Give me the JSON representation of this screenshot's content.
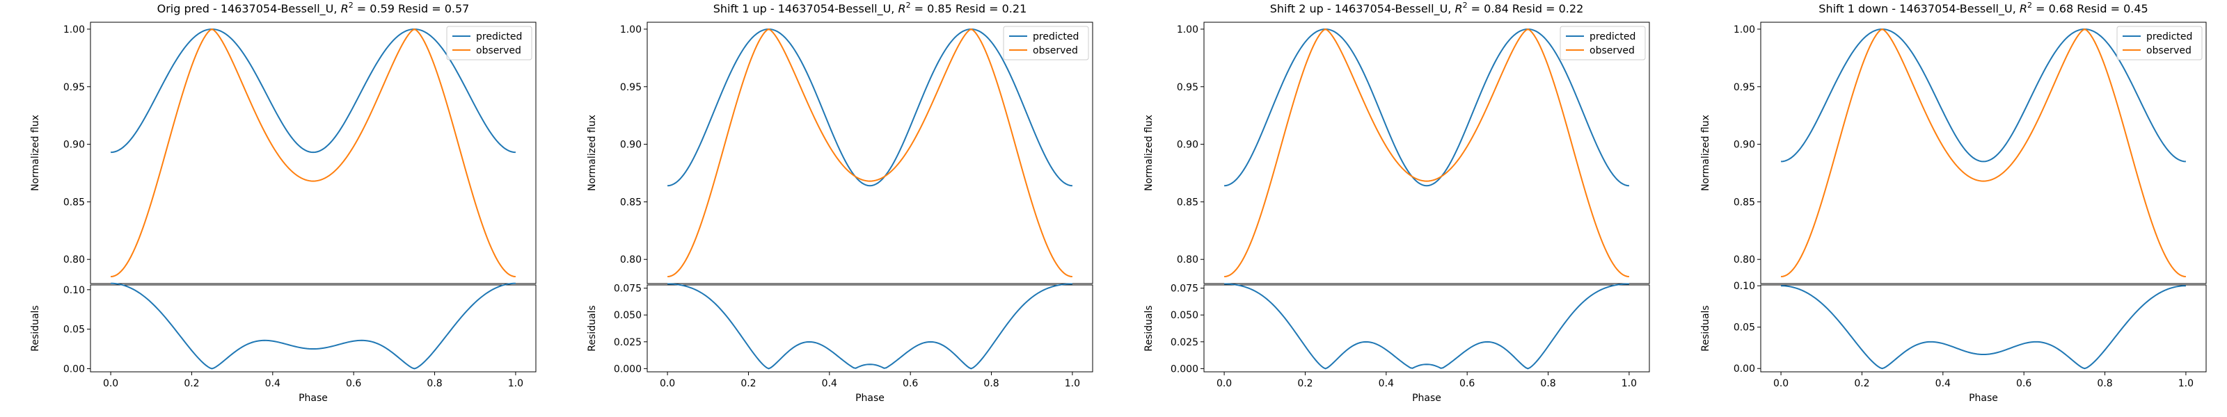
{
  "chart_data": [
    {
      "type": "line",
      "title": "Orig pred - 14637054-Bessell_U, $R^2 = 0.59$ Resid = 0.57",
      "title_parts": {
        "prefix": "Orig pred - 14637054-Bessell_U, ",
        "r2_symbol": "R",
        "r2_exp": "2",
        "suffix": " = 0.59 Resid = 0.57"
      },
      "ylabel": "Normalized flux",
      "ylim": [
        0.779,
        1.006
      ],
      "yticks": [
        "0.80",
        "0.85",
        "0.90",
        "0.95",
        "1.00"
      ],
      "legend": {
        "position": "top-right",
        "entries": [
          "predicted",
          "observed"
        ]
      },
      "series": [
        {
          "name": "predicted",
          "params": {
            "mid": 0.907,
            "end": 0.893
          }
        },
        {
          "name": "observed",
          "params": {
            "mid": 0.868,
            "end": 0.785
          }
        }
      ],
      "residuals": {
        "ylabel": "Residuals",
        "xlabel": "Phase",
        "ylim": [
          -0.004,
          0.106
        ],
        "yticks": [
          "0.00",
          "0.05",
          "0.10"
        ]
      },
      "xlim": [
        -0.05,
        1.05
      ],
      "xticks": [
        "0.0",
        "0.2",
        "0.4",
        "0.6",
        "0.8",
        "1.0"
      ]
    },
    {
      "type": "line",
      "title": "Shift 1 up - 14637054-Bessell_U, $R^2 = 0.85$ Resid = 0.21",
      "title_parts": {
        "prefix": "Shift 1 up - 14637054-Bessell_U, ",
        "r2_symbol": "R",
        "r2_exp": "2",
        "suffix": " = 0.85 Resid = 0.21"
      },
      "ylabel": "Normalized flux",
      "ylim": [
        0.779,
        1.006
      ],
      "yticks": [
        "0.80",
        "0.85",
        "0.90",
        "0.95",
        "1.00"
      ],
      "legend": {
        "position": "top-right",
        "entries": [
          "predicted",
          "observed"
        ]
      },
      "series": [
        {
          "name": "predicted",
          "params": {
            "mid": 0.885,
            "end": 0.864
          }
        },
        {
          "name": "observed",
          "params": {
            "mid": 0.868,
            "end": 0.785
          }
        }
      ],
      "residuals": {
        "ylabel": "Residuals",
        "xlabel": "Phase",
        "ylim": [
          -0.003,
          0.078
        ],
        "yticks": [
          "0.000",
          "0.025",
          "0.050",
          "0.075"
        ]
      },
      "xlim": [
        -0.05,
        1.05
      ],
      "xticks": [
        "0.0",
        "0.2",
        "0.4",
        "0.6",
        "0.8",
        "1.0"
      ]
    },
    {
      "type": "line",
      "title": "Shift 2 up - 14637054-Bessell_U, $R^2 = 0.84$ Resid = 0.22",
      "title_parts": {
        "prefix": "Shift 2 up - 14637054-Bessell_U, ",
        "r2_symbol": "R",
        "r2_exp": "2",
        "suffix": " = 0.84 Resid = 0.22"
      },
      "ylabel": "Normalized flux",
      "ylim": [
        0.779,
        1.006
      ],
      "yticks": [
        "0.80",
        "0.85",
        "0.90",
        "0.95",
        "1.00"
      ],
      "legend": {
        "position": "top-right",
        "entries": [
          "predicted",
          "observed"
        ]
      },
      "series": [
        {
          "name": "predicted",
          "params": {
            "mid": 0.885,
            "end": 0.864
          }
        },
        {
          "name": "observed",
          "params": {
            "mid": 0.868,
            "end": 0.785
          }
        }
      ],
      "residuals": {
        "ylabel": "Residuals",
        "xlabel": "Phase",
        "ylim": [
          -0.003,
          0.078
        ],
        "yticks": [
          "0.000",
          "0.025",
          "0.050",
          "0.075"
        ]
      },
      "xlim": [
        -0.05,
        1.05
      ],
      "xticks": [
        "0.0",
        "0.2",
        "0.4",
        "0.6",
        "0.8",
        "1.0"
      ]
    },
    {
      "type": "line",
      "title": "Shift 1 down - 14637054-Bessell_U, $R^2 = 0.68$ Resid = 0.45",
      "title_parts": {
        "prefix": "Shift 1 down - 14637054-Bessell_U, ",
        "r2_symbol": "R",
        "r2_exp": "2",
        "suffix": " = 0.68 Resid = 0.45"
      },
      "ylabel": "Normalized flux",
      "ylim": [
        0.779,
        1.006
      ],
      "yticks": [
        "0.80",
        "0.85",
        "0.90",
        "0.95",
        "1.00"
      ],
      "legend": {
        "position": "top-right",
        "entries": [
          "predicted",
          "observed"
        ]
      },
      "series": [
        {
          "name": "predicted",
          "params": {
            "mid": 0.901,
            "end": 0.885
          }
        },
        {
          "name": "observed",
          "params": {
            "mid": 0.868,
            "end": 0.785
          }
        }
      ],
      "residuals": {
        "ylabel": "Residuals",
        "xlabel": "Phase",
        "ylim": [
          -0.004,
          0.101
        ],
        "yticks": [
          "0.00",
          "0.05",
          "0.10"
        ]
      },
      "xlim": [
        -0.05,
        1.05
      ],
      "xticks": [
        "0.0",
        "0.2",
        "0.4",
        "0.6",
        "0.8",
        "1.0"
      ]
    }
  ],
  "colors": {
    "predicted": "#1f77b4",
    "observed": "#ff7f0e",
    "axis": "#000000",
    "legend_border": "#cccccc"
  }
}
